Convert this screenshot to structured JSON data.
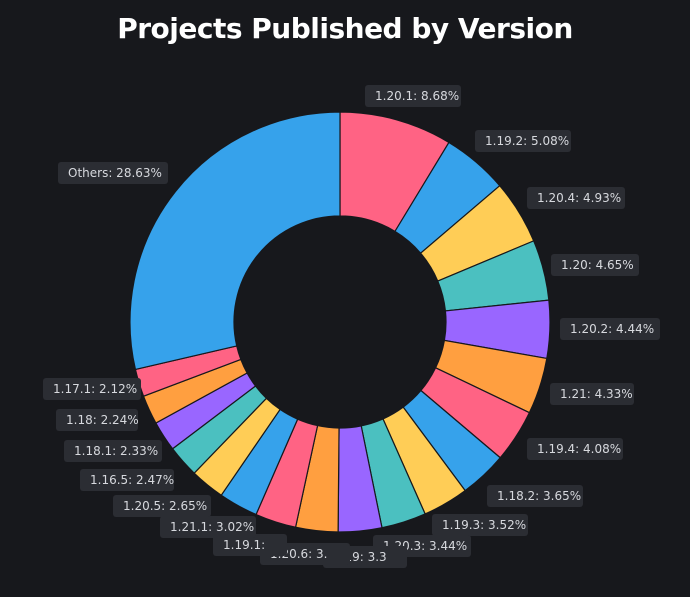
{
  "chart_data": {
    "type": "pie",
    "title": "Projects Published by Version",
    "slices": [
      {
        "label": "1.20.1",
        "value": 8.68,
        "color": "#ff6384",
        "display": "1.20.1: 8.68%"
      },
      {
        "label": "1.19.2",
        "value": 5.08,
        "color": "#36a2eb",
        "display": "1.19.2: 5.08%"
      },
      {
        "label": "1.20.4",
        "value": 4.93,
        "color": "#ffcd56",
        "display": "1.20.4: 4.93%"
      },
      {
        "label": "1.20",
        "value": 4.65,
        "color": "#4bc0c0",
        "display": "1.20: 4.65%"
      },
      {
        "label": "1.20.2",
        "value": 4.44,
        "color": "#9966ff",
        "display": "1.20.2: 4.44%"
      },
      {
        "label": "1.21",
        "value": 4.33,
        "color": "#ff9f40",
        "display": "1.21: 4.33%"
      },
      {
        "label": "1.19.4",
        "value": 4.08,
        "color": "#ff6384",
        "display": "1.19.4: 4.08%"
      },
      {
        "label": "1.18.2",
        "value": 3.65,
        "color": "#36a2eb",
        "display": "1.18.2: 3.65%"
      },
      {
        "label": "1.19.3",
        "value": 3.52,
        "color": "#ffcd56",
        "display": "1.19.3: 3.52%"
      },
      {
        "label": "1.20.3",
        "value": 3.44,
        "color": "#4bc0c0",
        "display": "1.20.3: 3.44%"
      },
      {
        "label": "1.19",
        "value": 3.35,
        "color": "#9966ff",
        "display": "1.19: 3.3"
      },
      {
        "label": "1.20.6",
        "value": 3.25,
        "color": "#ff9f40",
        "display": "1.20.6: 3."
      },
      {
        "label": "1.19.1",
        "value": 3.15,
        "color": "#ff6384",
        "display": "1.19.1:"
      },
      {
        "label": "1.21.1",
        "value": 3.02,
        "color": "#36a2eb",
        "display": "1.21.1: 3.02%"
      },
      {
        "label": "1.20.5",
        "value": 2.65,
        "color": "#ffcd56",
        "display": "1.20.5: 2.65%"
      },
      {
        "label": "1.16.5",
        "value": 2.47,
        "color": "#4bc0c0",
        "display": "1.16.5: 2.47%"
      },
      {
        "label": "1.18.1",
        "value": 2.33,
        "color": "#9966ff",
        "display": "1.18.1: 2.33%"
      },
      {
        "label": "1.18",
        "value": 2.24,
        "color": "#ff9f40",
        "display": "1.18: 2.24%"
      },
      {
        "label": "1.17.1",
        "value": 2.12,
        "color": "#ff6384",
        "display": "1.17.1: 2.12%"
      },
      {
        "label": "Others",
        "value": 28.63,
        "color": "#36a2eb",
        "display": "Others: 28.63%"
      }
    ],
    "background": "#17181c",
    "slice_border_color": "#17181c"
  }
}
